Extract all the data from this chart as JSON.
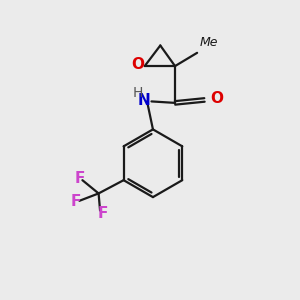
{
  "background_color": "#ebebeb",
  "line_color": "#1a1a1a",
  "O_color": "#dd0000",
  "N_color": "#0000cc",
  "F_color": "#cc44cc",
  "H_color": "#555555",
  "line_width": 1.6,
  "figsize": [
    3.0,
    3.0
  ],
  "dpi": 100,
  "xlim": [
    0,
    10
  ],
  "ylim": [
    0,
    10
  ]
}
